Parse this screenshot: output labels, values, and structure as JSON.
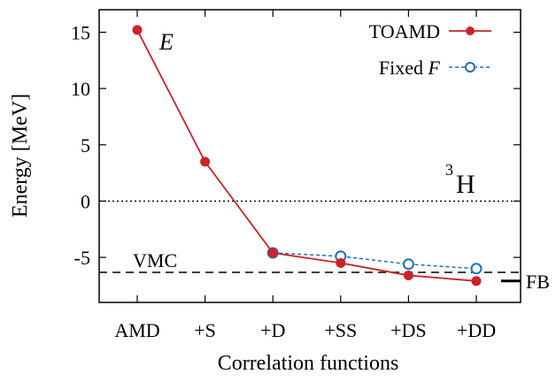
{
  "chart_data": {
    "type": "line",
    "categories": [
      "AMD",
      "+S",
      "+D",
      "+SS",
      "+DS",
      "+DD"
    ],
    "xlabel": "Correlation functions",
    "ylabel": "Energy [MeV]",
    "ylim": [
      -9,
      17
    ],
    "yticks": [
      15,
      10,
      5,
      0,
      -5
    ],
    "ytick_labels": [
      "15",
      "10",
      "5",
      "0",
      "-5"
    ],
    "grid": false,
    "legend_position": "top-right",
    "series": [
      {
        "name": "TOAMD",
        "color": "#cc2229",
        "style": "solid",
        "marker": "filled-circle",
        "values": [
          15.2,
          3.5,
          -4.6,
          -5.5,
          -6.6,
          -7.1
        ]
      },
      {
        "name": "Fixed F",
        "name_parts": [
          "Fixed ",
          "F"
        ],
        "color": "#1f6fb5",
        "style": "dashed",
        "marker": "open-circle",
        "values": [
          null,
          null,
          -4.6,
          -4.9,
          -5.6,
          -6.0
        ]
      }
    ],
    "reference_lines": [
      {
        "y": 0,
        "style": "dotted",
        "label": ""
      },
      {
        "y": -6.33,
        "style": "dashed",
        "label": "VMC"
      }
    ],
    "fb": {
      "y": -7.1,
      "label": "FB"
    },
    "annotations": {
      "energy_symbol": "E",
      "nucleus_mass": "3",
      "nucleus_symbol": "H"
    }
  }
}
